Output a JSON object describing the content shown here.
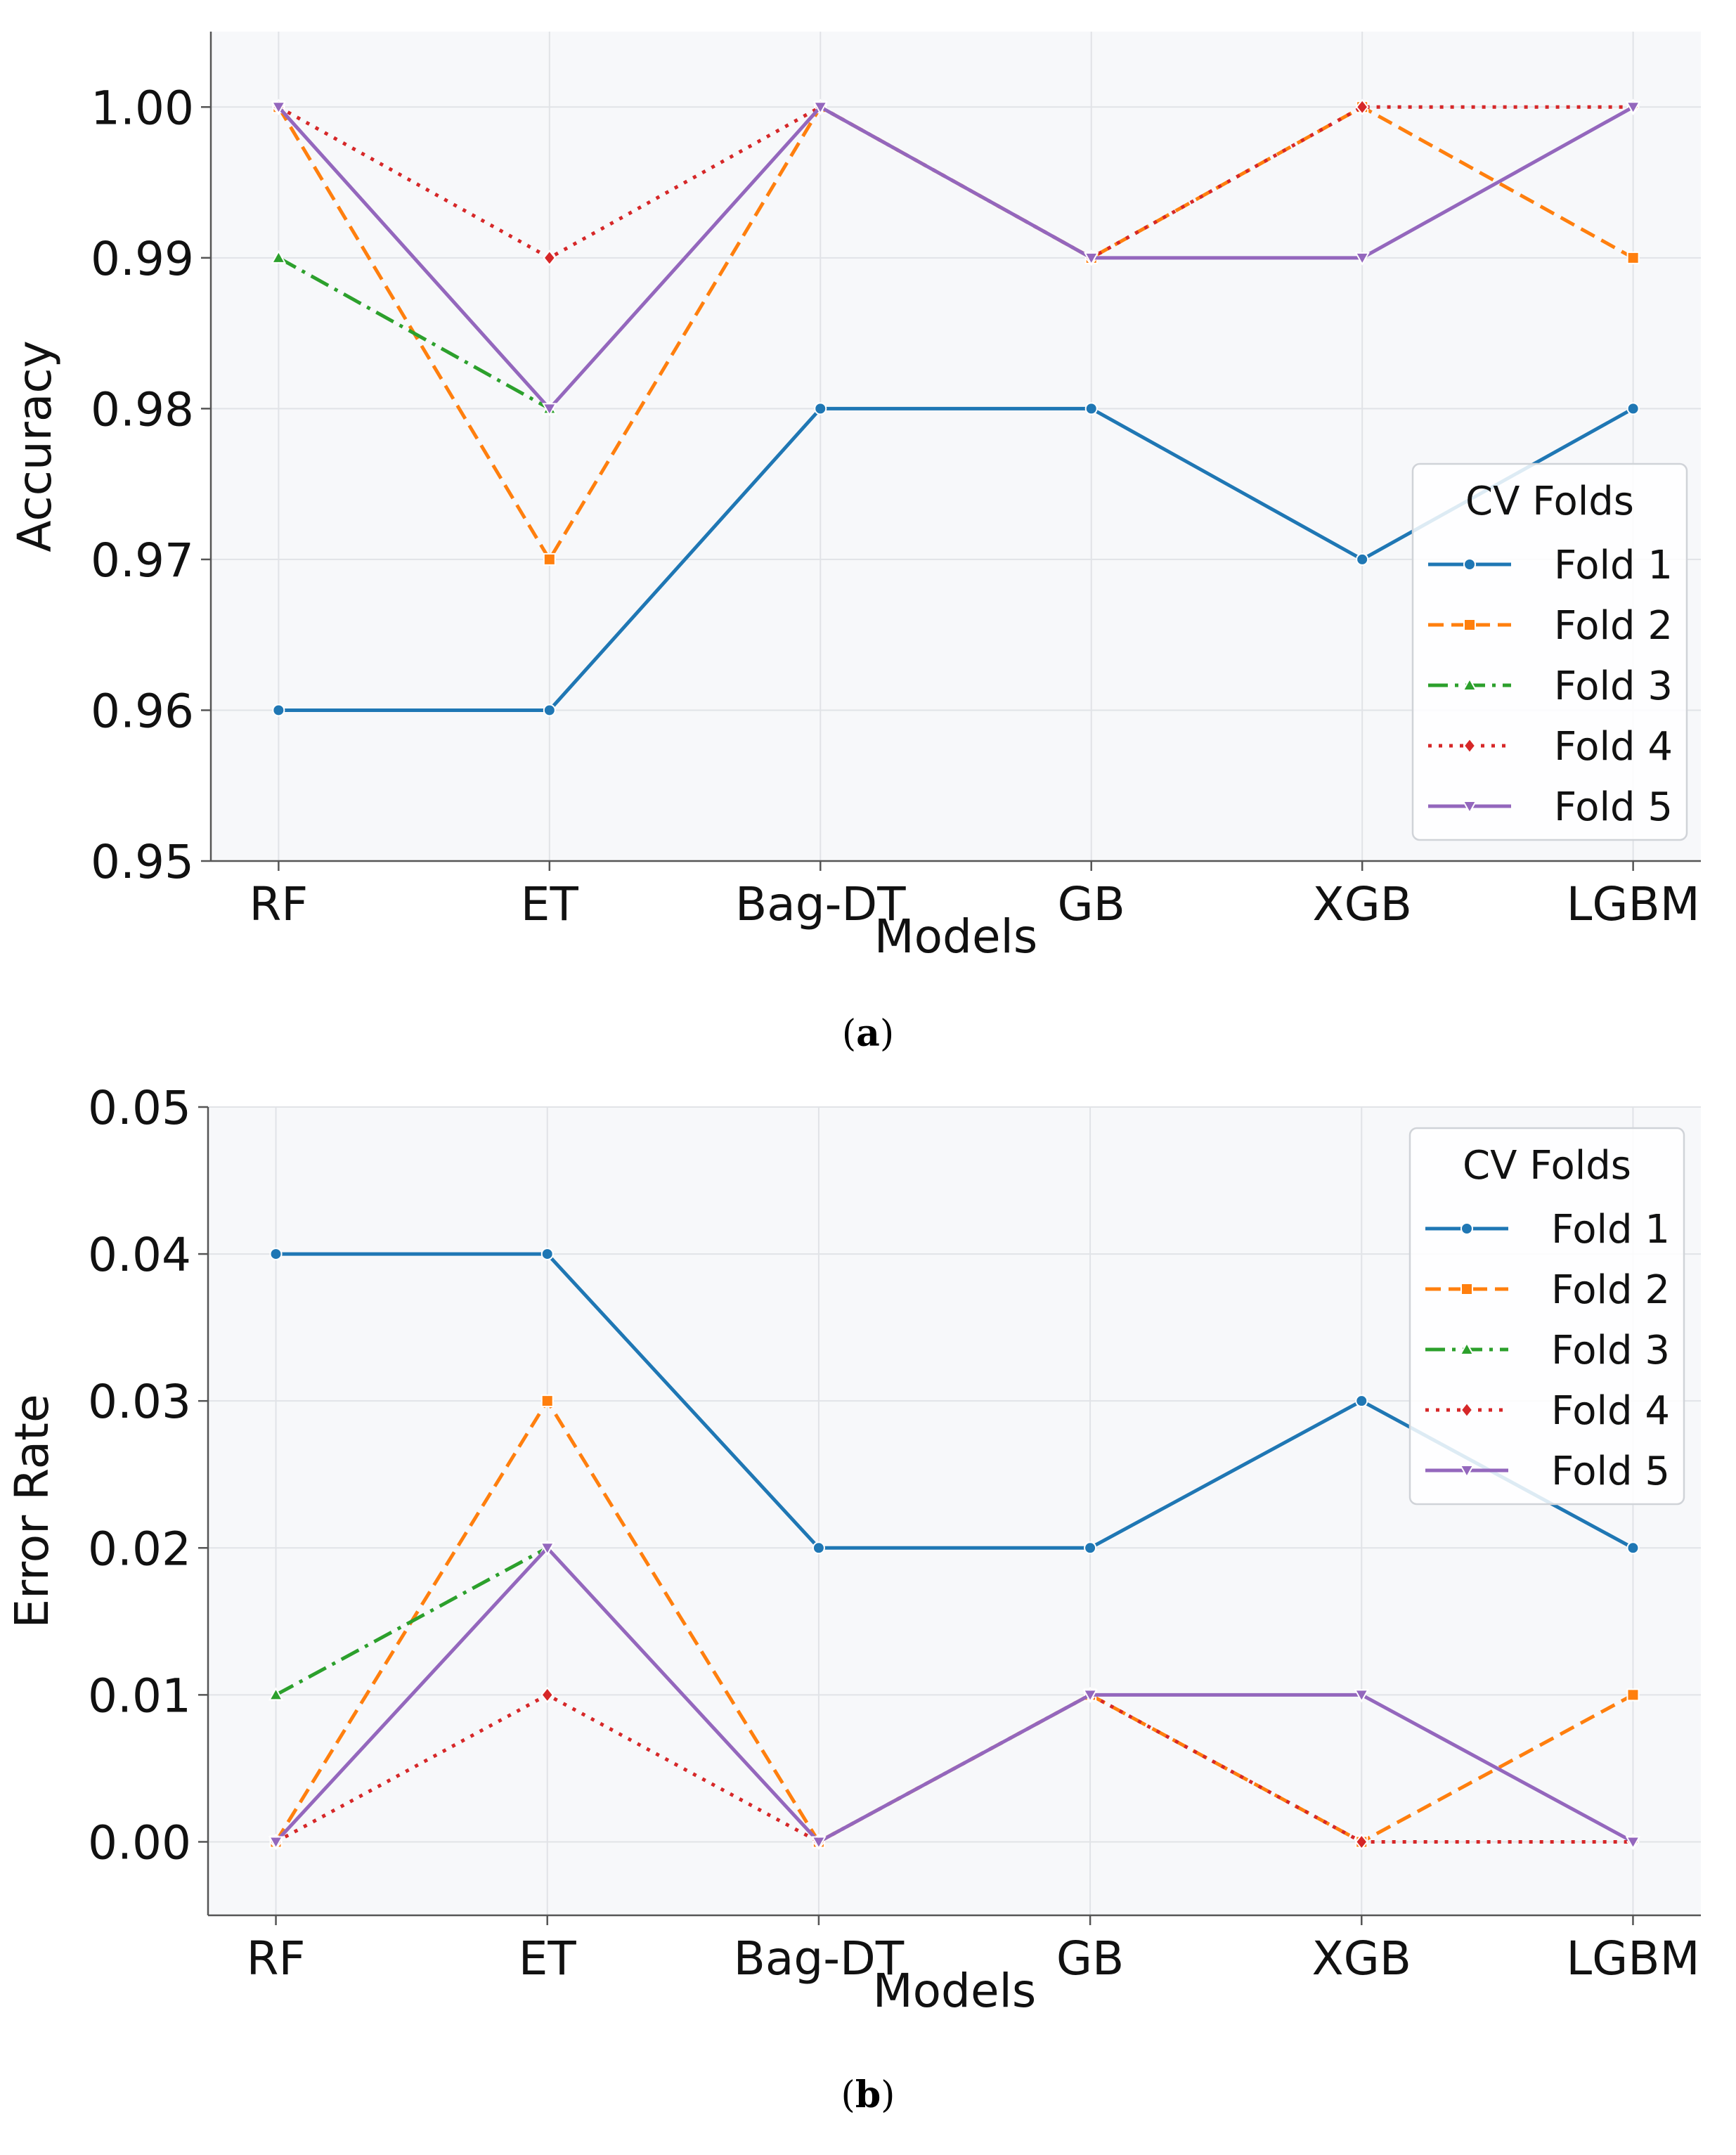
{
  "chart_data": [
    {
      "id": "a",
      "type": "line",
      "caption": "a",
      "xlabel": "Models",
      "ylabel": "Accuracy",
      "categories": [
        "RF",
        "ET",
        "Bag-DT",
        "GB",
        "XGB",
        "LGBM"
      ],
      "ylim": [
        0.95,
        1.005
      ],
      "yticks": [
        0.95,
        0.96,
        0.97,
        0.98,
        0.99,
        1.0
      ],
      "ytick_labels": [
        "0.95",
        "0.96",
        "0.97",
        "0.98",
        "0.99",
        "1.00"
      ],
      "grid": true,
      "legend_title": "CV Folds",
      "legend_position": "center-right",
      "series": [
        {
          "name": "Fold 1",
          "values": [
            0.96,
            0.96,
            0.98,
            0.98,
            0.97,
            0.98
          ]
        },
        {
          "name": "Fold 2",
          "values": [
            1.0,
            0.97,
            1.0,
            0.99,
            1.0,
            0.99
          ]
        },
        {
          "name": "Fold 3",
          "values": [
            0.99,
            0.98,
            null,
            null,
            null,
            null
          ]
        },
        {
          "name": "Fold 4",
          "values": [
            1.0,
            0.99,
            1.0,
            0.99,
            1.0,
            1.0
          ]
        },
        {
          "name": "Fold 5",
          "values": [
            1.0,
            0.98,
            1.0,
            0.99,
            0.99,
            1.0
          ]
        }
      ]
    },
    {
      "id": "b",
      "type": "line",
      "caption": "b",
      "xlabel": "Models",
      "ylabel": "Error Rate",
      "categories": [
        "RF",
        "ET",
        "Bag-DT",
        "GB",
        "XGB",
        "LGBM"
      ],
      "ylim": [
        -0.005,
        0.05
      ],
      "yticks": [
        0.0,
        0.01,
        0.02,
        0.03,
        0.04,
        0.05
      ],
      "ytick_labels": [
        "0.00",
        "0.01",
        "0.02",
        "0.03",
        "0.04",
        "0.05"
      ],
      "grid": true,
      "legend_title": "CV Folds",
      "legend_position": "top-right",
      "series": [
        {
          "name": "Fold 1",
          "values": [
            0.04,
            0.04,
            0.02,
            0.02,
            0.03,
            0.02
          ]
        },
        {
          "name": "Fold 2",
          "values": [
            0.0,
            0.03,
            0.0,
            0.01,
            0.0,
            0.01
          ]
        },
        {
          "name": "Fold 3",
          "values": [
            0.01,
            0.02,
            null,
            null,
            null,
            null
          ]
        },
        {
          "name": "Fold 4",
          "values": [
            0.0,
            0.01,
            0.0,
            0.01,
            0.0,
            0.0
          ]
        },
        {
          "name": "Fold 5",
          "values": [
            0.0,
            0.02,
            0.0,
            0.01,
            0.01,
            0.0
          ]
        }
      ]
    }
  ],
  "style": {
    "colors": [
      "#1f77b4",
      "#ff7f0e",
      "#2ca02c",
      "#d62728",
      "#9467bd"
    ],
    "dashes": [
      "",
      "22,11",
      "28,10,5,10",
      "5,10",
      ""
    ],
    "markers": [
      "circle",
      "square",
      "triangle-up",
      "diamond",
      "triangle-down"
    ],
    "plot_background": "#f7f8fa",
    "grid_color": "#e1e3e7"
  }
}
